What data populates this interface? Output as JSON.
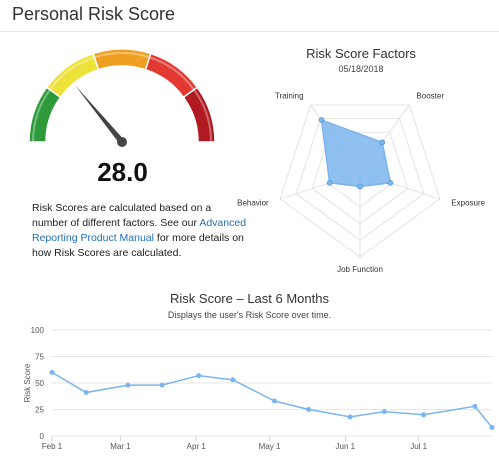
{
  "page": {
    "title": "Personal Risk Score"
  },
  "gauge": {
    "value": 28.0,
    "display": "28.0",
    "min": 0,
    "max": 100,
    "colors": [
      "#2e9a3a",
      "#ede23a",
      "#f0a020",
      "#e23a32",
      "#b21a22"
    ]
  },
  "description": {
    "text_before": "Risk Scores are calculated based on a number of different factors. See our ",
    "link": "Advanced Reporting Product Manual",
    "text_after": " for more details on how Risk Scores are calculated."
  },
  "chart_data": [
    {
      "type": "radar",
      "title": "Risk Score Factors",
      "subtitle": "05/18/2018",
      "axes": [
        "Booster",
        "Exposure",
        "Job Function",
        "Behavior",
        "Training"
      ],
      "values": [
        0.45,
        0.38,
        0.16,
        0.38,
        0.78
      ],
      "max": 1,
      "color": "#7cb5ec"
    },
    {
      "type": "line",
      "title": "Risk Score – Last 6 Months",
      "subtitle": "Displays the user's Risk Score over time.",
      "ylabel": "Risk Score",
      "xlabel": "",
      "ylim": [
        0,
        100
      ],
      "yticks": [
        0,
        25,
        50,
        75,
        100
      ],
      "xticks": [
        "Feb 1",
        "Mar 1",
        "Apr 1",
        "May 1",
        "Jun 1",
        "Jul 1"
      ],
      "xdomain": [
        "2018-02-01",
        "2018-07-31"
      ],
      "grid": true,
      "color": "#7cb5ec",
      "points": [
        {
          "x": "2018-02-01",
          "y": 60
        },
        {
          "x": "2018-02-15",
          "y": 41
        },
        {
          "x": "2018-03-04",
          "y": 48
        },
        {
          "x": "2018-03-18",
          "y": 48
        },
        {
          "x": "2018-04-02",
          "y": 57
        },
        {
          "x": "2018-04-16",
          "y": 53
        },
        {
          "x": "2018-05-03",
          "y": 33
        },
        {
          "x": "2018-05-17",
          "y": 25
        },
        {
          "x": "2018-06-03",
          "y": 18
        },
        {
          "x": "2018-06-17",
          "y": 23
        },
        {
          "x": "2018-07-03",
          "y": 20
        },
        {
          "x": "2018-07-24",
          "y": 28
        },
        {
          "x": "2018-07-31",
          "y": 8
        }
      ]
    }
  ]
}
